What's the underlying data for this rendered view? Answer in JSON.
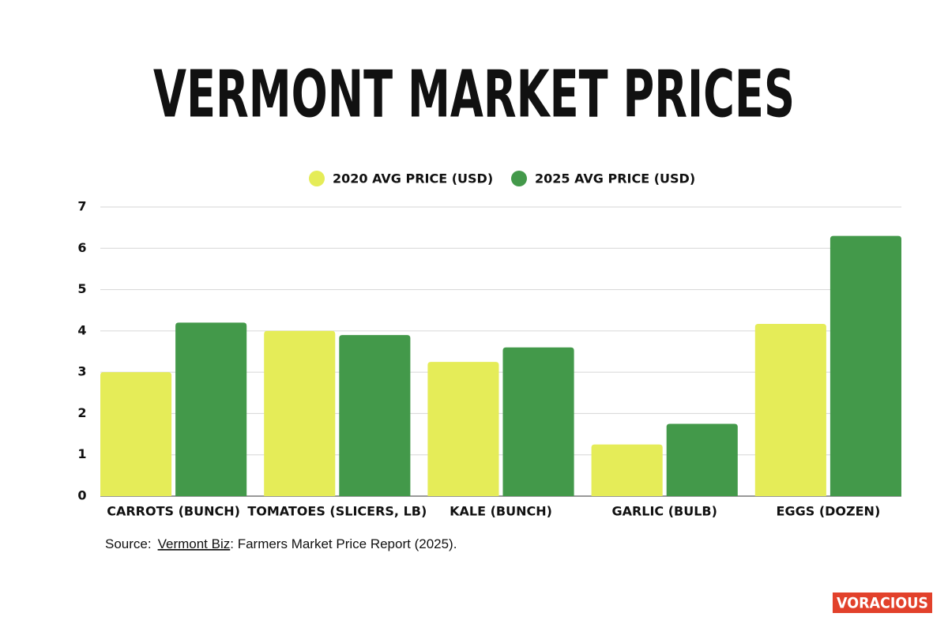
{
  "chart_data": {
    "type": "bar",
    "title": "VERMONT MARKET PRICES",
    "categories": [
      "CARROTS (BUNCH)",
      "TOMATOES (SLICERS, LB)",
      "KALE (BUNCH)",
      "GARLIC (BULB)",
      "EGGS (DOZEN)"
    ],
    "series": [
      {
        "name": "2020 AVG PRICE (USD)",
        "color": "#e5ec58",
        "values": [
          3.0,
          4.0,
          3.25,
          1.25,
          4.17
        ]
      },
      {
        "name": "2025 AVG PRICE (USD)",
        "color": "#43994a",
        "values": [
          4.2,
          3.9,
          3.6,
          1.75,
          6.3
        ]
      }
    ],
    "ylim": [
      0,
      7
    ],
    "yticks": [
      0,
      1,
      2,
      3,
      4,
      5,
      6,
      7
    ],
    "grid": true,
    "legend": "top",
    "source": {
      "prefix": "Source:",
      "link": "Vermont Biz",
      "rest": ": Farmers Market Price Report (2025)."
    }
  },
  "brand": "VORACIOUS"
}
